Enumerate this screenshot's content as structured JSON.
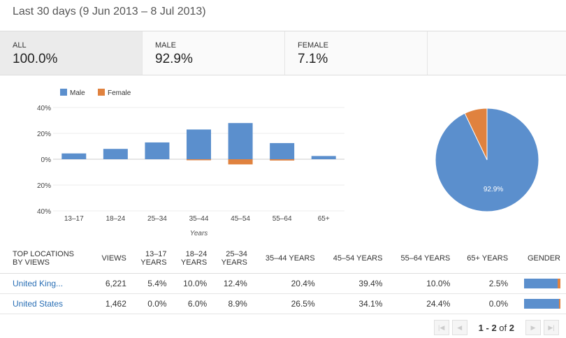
{
  "title": "Last 30 days (9 Jun 2013 – 8 Jul 2013)",
  "tiles": [
    {
      "label": "ALL",
      "value": "100.0%"
    },
    {
      "label": "MALE",
      "value": "92.9%"
    },
    {
      "label": "FEMALE",
      "value": "7.1%"
    }
  ],
  "colors": {
    "male": "#5b8fcd",
    "female": "#e0823f"
  },
  "chart_data": [
    {
      "type": "bar",
      "categories": [
        "13–17",
        "18–24",
        "25–34",
        "35–44",
        "45–54",
        "55–64",
        "65+"
      ],
      "series": [
        {
          "name": "Male",
          "values": [
            4.5,
            8,
            13,
            23,
            28,
            12.5,
            2.5
          ]
        },
        {
          "name": "Female",
          "values": [
            0,
            0,
            0,
            -0.8,
            -4,
            -1,
            0
          ]
        }
      ],
      "xlabel": "Years",
      "ylim": [
        -40,
        40
      ],
      "yticks": [
        {
          "v": 40,
          "label": "40%"
        },
        {
          "v": 20,
          "label": "20%"
        },
        {
          "v": 0,
          "label": "0%"
        },
        {
          "v": -20,
          "label": "20%"
        },
        {
          "v": -40,
          "label": "40%"
        }
      ],
      "legend": "top-left"
    },
    {
      "type": "pie",
      "slices": [
        {
          "name": "Male",
          "value": 92.9,
          "label": "92.9%"
        },
        {
          "name": "Female",
          "value": 7.1
        }
      ]
    }
  ],
  "table": {
    "headers": [
      [
        "TOP LOCATIONS",
        "BY VIEWS"
      ],
      [
        "VIEWS"
      ],
      [
        "13–17",
        "YEARS"
      ],
      [
        "18–24",
        "YEARS"
      ],
      [
        "25–34",
        "YEARS"
      ],
      [
        "35–44 YEARS"
      ],
      [
        "45–54 YEARS"
      ],
      [
        "55–64 YEARS"
      ],
      [
        "65+ YEARS"
      ],
      [
        "GENDER"
      ]
    ],
    "rows": [
      {
        "location": "United King...",
        "cells": [
          "6,221",
          "5.4%",
          "10.0%",
          "12.4%",
          "20.4%",
          "39.4%",
          "10.0%",
          "2.5%"
        ],
        "female_share": 0.07
      },
      {
        "location": "United States",
        "cells": [
          "1,462",
          "0.0%",
          "6.0%",
          "8.9%",
          "26.5%",
          "34.1%",
          "24.4%",
          "0.0%"
        ],
        "female_share": 0.04
      }
    ]
  },
  "pager": {
    "range": "1 - 2",
    "of": "of",
    "total": "2"
  }
}
